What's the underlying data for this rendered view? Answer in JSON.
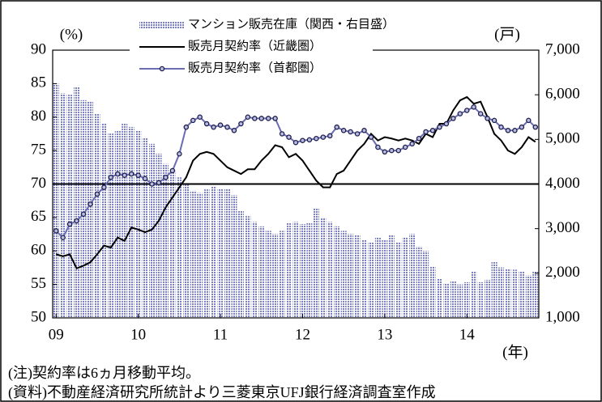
{
  "chart_data": {
    "type": "combo",
    "left_unit": "(%)",
    "right_unit": "(戸)",
    "x_unit": "(年)",
    "notes": [
      "(注)契約率は6ヵ月移動平均。",
      "(資料)不動産経済研究所統計より三菱東京UFJ銀行経済調査室作成"
    ],
    "x": [
      0,
      1,
      2,
      3,
      4,
      5,
      6,
      7,
      8,
      9,
      10,
      11,
      12,
      13,
      14,
      15,
      16,
      17,
      18,
      19,
      20,
      21,
      22,
      23,
      24,
      25,
      26,
      27,
      28,
      29,
      30,
      31,
      32,
      33,
      34,
      35,
      36,
      37,
      38,
      39,
      40,
      41,
      42,
      43,
      44,
      45,
      46,
      47,
      48,
      49,
      50,
      51,
      52,
      53,
      54,
      55,
      56,
      57,
      58,
      59,
      60,
      61,
      62,
      63,
      64,
      65,
      66,
      67,
      68,
      69,
      70
    ],
    "xlim": [
      -0.5,
      70.5
    ],
    "xticks": [
      {
        "value": 0,
        "label": "09"
      },
      {
        "value": 12,
        "label": "10"
      },
      {
        "value": 24,
        "label": "11"
      },
      {
        "value": 36,
        "label": "12"
      },
      {
        "value": 48,
        "label": "13"
      },
      {
        "value": 60,
        "label": "14"
      }
    ],
    "ylim": [
      50,
      90
    ],
    "yticks": [
      50,
      55,
      60,
      65,
      70,
      75,
      80,
      85,
      90
    ],
    "y2lim": [
      1000,
      7000
    ],
    "y2ticks": [
      {
        "value": 1000,
        "label": "1,000"
      },
      {
        "value": 2000,
        "label": "2,000"
      },
      {
        "value": 3000,
        "label": "3,000"
      },
      {
        "value": 4000,
        "label": "4,000"
      },
      {
        "value": 5000,
        "label": "5,000"
      },
      {
        "value": 6000,
        "label": "6,000"
      },
      {
        "value": 7000,
        "label": "7,000"
      }
    ],
    "reference_line": 70,
    "grid": false,
    "legend": "top",
    "series": [
      {
        "name": "マンション販売在庫（関西・右目盛）",
        "type": "bar",
        "axis": "y2",
        "color": "#7b7fc6",
        "values": [
          6250,
          6030,
          6000,
          6170,
          5880,
          5850,
          5580,
          5350,
          5130,
          5200,
          5350,
          5280,
          5200,
          5030,
          4900,
          4680,
          4450,
          4300,
          4150,
          4000,
          3850,
          3800,
          3880,
          3950,
          3900,
          3900,
          3750,
          3400,
          3280,
          3150,
          3050,
          2950,
          2880,
          2950,
          3130,
          3150,
          3100,
          3130,
          3450,
          3250,
          3150,
          3050,
          2950,
          2880,
          2850,
          2750,
          2700,
          2800,
          2750,
          2850,
          2700,
          2800,
          2880,
          2600,
          2500,
          2150,
          1880,
          1780,
          1830,
          1750,
          1800,
          2050,
          1800,
          1850,
          2250,
          2130,
          2100,
          2080,
          2050,
          1950,
          2050
        ]
      },
      {
        "name": "販売月契約率（近畿圏）",
        "type": "line",
        "color": "#000000",
        "marker": false,
        "values": [
          59.5,
          59.2,
          59.5,
          57.4,
          57.8,
          58.3,
          59.5,
          60.8,
          60.5,
          62,
          61.5,
          63.5,
          63.2,
          62.8,
          63.2,
          64.5,
          66.5,
          68,
          69.5,
          71,
          73.5,
          74.5,
          74.8,
          74.5,
          73.5,
          72.5,
          72,
          71.5,
          72.2,
          72.2,
          73.5,
          74.5,
          75.8,
          75.5,
          74,
          74.5,
          73.5,
          72,
          70.5,
          69.5,
          69.5,
          71.5,
          72,
          73.5,
          75,
          76,
          77.5,
          76.5,
          77,
          76.8,
          76.5,
          76.8,
          76.5,
          76,
          77.5,
          77,
          79,
          79,
          81,
          82.5,
          83,
          82,
          82.3,
          80,
          77.5,
          76.5,
          75,
          74.5,
          75.5,
          77,
          76.3
        ]
      },
      {
        "name": "販売月契約率（首都圏）",
        "type": "line",
        "color": "#6a6cb4",
        "marker": true,
        "values": [
          63,
          62,
          64,
          64.5,
          65.5,
          67,
          68.5,
          69.5,
          71,
          71.5,
          71.3,
          71.5,
          71.3,
          70.8,
          70,
          70.2,
          71,
          72,
          74.5,
          78.5,
          79.5,
          80,
          79,
          78.5,
          78.8,
          78.5,
          78,
          79,
          80,
          79.8,
          79.8,
          79.8,
          79.8,
          77.5,
          77,
          76.2,
          76.5,
          76.6,
          76.8,
          77,
          77.2,
          78.5,
          78,
          77.8,
          77.5,
          78,
          77,
          75.5,
          74.8,
          75,
          75,
          75.5,
          76,
          76.8,
          77.8,
          78,
          78.5,
          79,
          79.8,
          80.5,
          81,
          81.5,
          80.5,
          79.8,
          79.5,
          78.5,
          78,
          78,
          78.5,
          79.5,
          78.5
        ]
      }
    ]
  }
}
